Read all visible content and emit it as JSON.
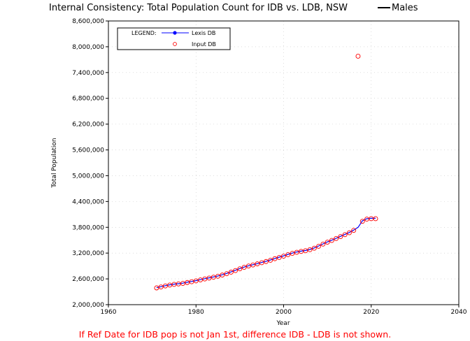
{
  "chart_data": {
    "type": "line",
    "title": "Internal Consistency: Total Population Count for IDB vs. LDB, NSW",
    "title_suffix": "Males",
    "xlabel": "Year",
    "ylabel": "Total Population",
    "xlim": [
      1960,
      2040
    ],
    "ylim": [
      2000000,
      8600000
    ],
    "x_ticks": [
      1960,
      1980,
      2000,
      2020,
      2040
    ],
    "x_tick_labels": [
      "1960",
      "1980",
      "2000",
      "2020",
      "2040"
    ],
    "y_ticks": [
      2000000,
      2600000,
      3200000,
      3800000,
      4400000,
      5000000,
      5600000,
      6200000,
      6800000,
      7400000,
      8000000,
      8600000
    ],
    "y_tick_labels": [
      "2,000,000",
      "2,600,000",
      "3,200,000",
      "3,800,000",
      "4,400,000",
      "5,000,000",
      "5,600,000",
      "6,200,000",
      "6,800,000",
      "7,400,000",
      "8,000,000",
      "8,600,000"
    ],
    "grid": true,
    "legend": {
      "placement": "top-left",
      "title": "LEGEND:",
      "entries": [
        "Lexis DB",
        "Input DB"
      ]
    },
    "colors": {
      "lexis": "#0000ff",
      "input": "#ff0000",
      "title_line": "#000000",
      "footnote": "#ff0000"
    },
    "series": [
      {
        "name": "Lexis DB",
        "style": "line",
        "x": [
          1971,
          1972,
          1973,
          1974,
          1975,
          1976,
          1977,
          1978,
          1979,
          1980,
          1981,
          1982,
          1983,
          1984,
          1985,
          1986,
          1987,
          1988,
          1989,
          1990,
          1991,
          1992,
          1993,
          1994,
          1995,
          1996,
          1997,
          1998,
          1999,
          2000,
          2001,
          2002,
          2003,
          2004,
          2005,
          2006,
          2007,
          2008,
          2009,
          2010,
          2011,
          2012,
          2013,
          2014,
          2015,
          2016,
          2017,
          2018,
          2019,
          2020,
          2021
        ],
        "values": [
          2395000,
          2418000,
          2442000,
          2462000,
          2478000,
          2488000,
          2500000,
          2522000,
          2540000,
          2560000,
          2582000,
          2604000,
          2625000,
          2645000,
          2668000,
          2695000,
          2727000,
          2762000,
          2800000,
          2840000,
          2875000,
          2905000,
          2930000,
          2955000,
          2982000,
          3010000,
          3040000,
          3075000,
          3105000,
          3135000,
          3170000,
          3200000,
          3225000,
          3245000,
          3260000,
          3285000,
          3320000,
          3365000,
          3415000,
          3460000,
          3500000,
          3545000,
          3590000,
          3635000,
          3680000,
          3735000,
          3800000,
          3950000,
          4000000,
          4010000,
          4010000
        ]
      },
      {
        "name": "Input DB",
        "style": "markers",
        "x": [
          1971,
          1972,
          1973,
          1974,
          1975,
          1976,
          1977,
          1978,
          1979,
          1980,
          1981,
          1982,
          1983,
          1984,
          1985,
          1986,
          1987,
          1988,
          1989,
          1990,
          1991,
          1992,
          1993,
          1994,
          1995,
          1996,
          1997,
          1998,
          1999,
          2000,
          2001,
          2002,
          2003,
          2004,
          2005,
          2006,
          2007,
          2008,
          2009,
          2010,
          2011,
          2012,
          2013,
          2014,
          2015,
          2016,
          2017,
          2018,
          2019,
          2020,
          2021
        ],
        "values": [
          2390000,
          2412000,
          2436000,
          2456000,
          2472000,
          2482000,
          2494000,
          2516000,
          2534000,
          2554000,
          2576000,
          2598000,
          2619000,
          2639000,
          2662000,
          2689000,
          2721000,
          2756000,
          2794000,
          2834000,
          2869000,
          2899000,
          2924000,
          2949000,
          2976000,
          3004000,
          3034000,
          3069000,
          3099000,
          3129000,
          3164000,
          3194000,
          3219000,
          3239000,
          3254000,
          3279000,
          3314000,
          3359000,
          3409000,
          3454000,
          3494000,
          3539000,
          3584000,
          3629000,
          3674000,
          3729000,
          7780000,
          3940000,
          3990000,
          4000000,
          4000000
        ]
      }
    ],
    "footnote": "If Ref Date for IDB pop is not Jan 1st, difference IDB - LDB is not shown."
  }
}
